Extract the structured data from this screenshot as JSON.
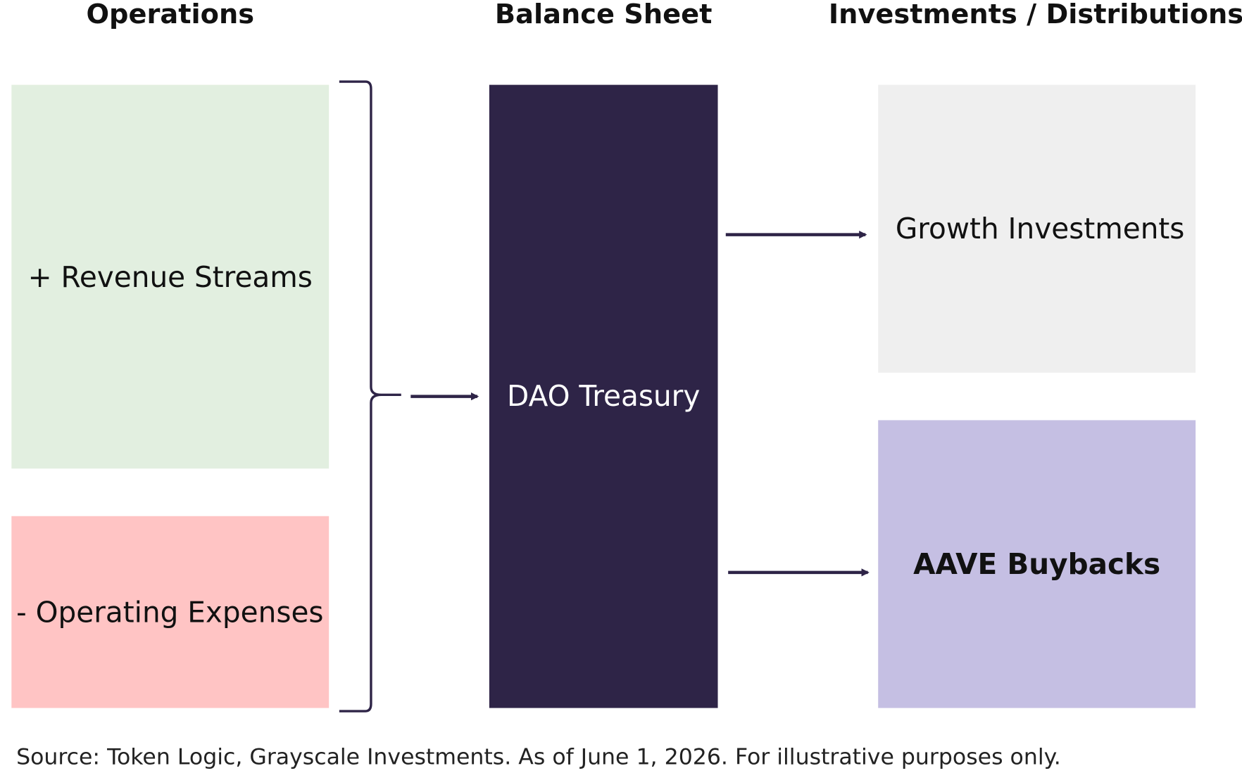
{
  "headers": [
    "Operations",
    "Balance Sheet",
    "Investments / Distributions"
  ],
  "operations": {
    "revenue": "+ Revenue Streams",
    "expenses": "- Operating Expenses"
  },
  "balance_sheet": {
    "treasury": "DAO Treasury"
  },
  "outflows": {
    "growth": "Growth Investments",
    "buybacks": "AAVE Buybacks"
  },
  "source": "Source: Token Logic, Grayscale Investments. As of June 1, 2026. For illustrative purposes only."
}
